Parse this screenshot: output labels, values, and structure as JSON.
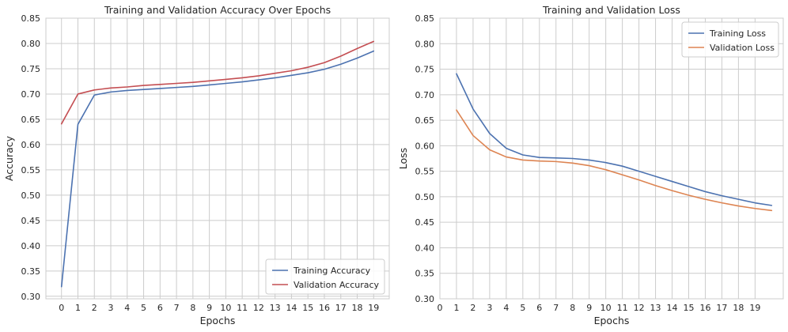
{
  "chart_data": [
    {
      "type": "line",
      "title": "Training and Validation Accuracy Over Epochs",
      "xlabel": "Epochs",
      "ylabel": "Accuracy",
      "xlim": [
        -0.95,
        19.95
      ],
      "ylim": [
        0.295,
        0.85
      ],
      "xticks": [
        "0",
        "1",
        "2",
        "3",
        "4",
        "5",
        "6",
        "7",
        "8",
        "9",
        "10",
        "11",
        "12",
        "13",
        "14",
        "15",
        "16",
        "17",
        "18",
        "19"
      ],
      "yticks": [
        "0.30",
        "0.35",
        "0.40",
        "0.45",
        "0.50",
        "0.55",
        "0.60",
        "0.65",
        "0.70",
        "0.75",
        "0.80",
        "0.85"
      ],
      "grid": true,
      "legend": "lower-right",
      "series": [
        {
          "name": "Training Accuracy",
          "color": "#4c72b0",
          "x": [
            0,
            1,
            2,
            3,
            4,
            5,
            6,
            7,
            8,
            9,
            10,
            11,
            12,
            13,
            14,
            15,
            16,
            17,
            18,
            19
          ],
          "values": [
            0.319,
            0.64,
            0.698,
            0.704,
            0.707,
            0.709,
            0.711,
            0.713,
            0.715,
            0.718,
            0.721,
            0.724,
            0.728,
            0.732,
            0.737,
            0.742,
            0.749,
            0.759,
            0.771,
            0.785
          ]
        },
        {
          "name": "Validation Accuracy",
          "color": "#c44e52",
          "x": [
            0,
            1,
            2,
            3,
            4,
            5,
            6,
            7,
            8,
            9,
            10,
            11,
            12,
            13,
            14,
            15,
            16,
            17,
            18,
            19
          ],
          "values": [
            0.641,
            0.7,
            0.708,
            0.712,
            0.714,
            0.717,
            0.719,
            0.721,
            0.723,
            0.726,
            0.729,
            0.732,
            0.736,
            0.741,
            0.746,
            0.753,
            0.762,
            0.775,
            0.79,
            0.804
          ]
        }
      ]
    },
    {
      "type": "line",
      "title": "Training and Validation Loss",
      "xlabel": "Epochs",
      "ylabel": "Loss",
      "xlim": [
        0,
        20.7
      ],
      "ylim": [
        0.3,
        0.85
      ],
      "xticks": [
        "0",
        "1",
        "2",
        "3",
        "4",
        "5",
        "6",
        "7",
        "8",
        "9",
        "10",
        "11",
        "12",
        "13",
        "14",
        "15",
        "16",
        "17",
        "18",
        "19"
      ],
      "yticks": [
        "0.30",
        "0.35",
        "0.40",
        "0.45",
        "0.50",
        "0.55",
        "0.60",
        "0.65",
        "0.70",
        "0.75",
        "0.80",
        "0.85"
      ],
      "grid": true,
      "legend": "upper-right",
      "series": [
        {
          "name": "Training Loss",
          "color": "#4c72b0",
          "x": [
            1,
            2,
            3,
            4,
            5,
            6,
            7,
            8,
            9,
            10,
            11,
            12,
            13,
            14,
            15,
            16,
            17,
            18,
            19,
            20
          ],
          "values": [
            0.741,
            0.672,
            0.624,
            0.595,
            0.582,
            0.577,
            0.576,
            0.575,
            0.572,
            0.567,
            0.56,
            0.55,
            0.54,
            0.53,
            0.52,
            0.51,
            0.502,
            0.495,
            0.488,
            0.483
          ]
        },
        {
          "name": "Validation Loss",
          "color": "#dd8452",
          "x": [
            1,
            2,
            3,
            4,
            5,
            6,
            7,
            8,
            9,
            10,
            11,
            12,
            13,
            14,
            15,
            16,
            17,
            18,
            19,
            20
          ],
          "values": [
            0.67,
            0.62,
            0.592,
            0.578,
            0.572,
            0.57,
            0.569,
            0.566,
            0.561,
            0.553,
            0.543,
            0.533,
            0.522,
            0.512,
            0.503,
            0.495,
            0.488,
            0.482,
            0.477,
            0.473
          ]
        }
      ]
    }
  ]
}
